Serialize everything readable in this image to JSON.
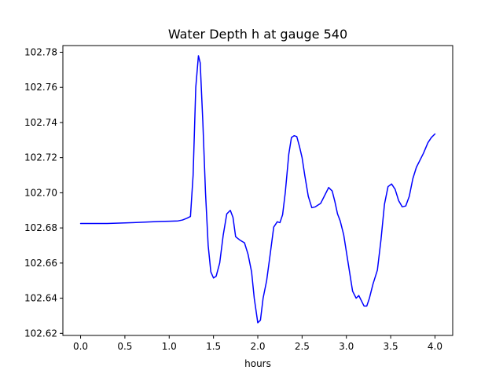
{
  "chart_data": {
    "type": "line",
    "title": "Water Depth h at gauge 540",
    "xlabel": "hours",
    "ylabel": "",
    "xlim": [
      -0.2,
      4.2
    ],
    "ylim": [
      102.6188,
      102.7838
    ],
    "xticks": [
      0.0,
      0.5,
      1.0,
      1.5,
      2.0,
      2.5,
      3.0,
      3.5,
      4.0
    ],
    "xtick_labels": [
      "0.0",
      "0.5",
      "1.0",
      "1.5",
      "2.0",
      "2.5",
      "3.0",
      "3.5",
      "4.0"
    ],
    "yticks": [
      102.62,
      102.64,
      102.66,
      102.68,
      102.7,
      102.72,
      102.74,
      102.76,
      102.78
    ],
    "ytick_labels": [
      "102.62",
      "102.64",
      "102.66",
      "102.68",
      "102.70",
      "102.72",
      "102.74",
      "102.76",
      "102.78"
    ],
    "grid": false,
    "series": [
      {
        "color": "#0000ff",
        "x": [
          0.0,
          0.3,
          0.6,
          0.9,
          1.0,
          1.1,
          1.15,
          1.2,
          1.24,
          1.27,
          1.3,
          1.33,
          1.35,
          1.38,
          1.41,
          1.44,
          1.47,
          1.5,
          1.53,
          1.57,
          1.61,
          1.65,
          1.69,
          1.72,
          1.75,
          1.8,
          1.85,
          1.89,
          1.93,
          1.96,
          2.0,
          2.03,
          2.06,
          2.1,
          2.14,
          2.18,
          2.22,
          2.25,
          2.28,
          2.31,
          2.35,
          2.38,
          2.41,
          2.44,
          2.47,
          2.5,
          2.53,
          2.57,
          2.61,
          2.65,
          2.68,
          2.71,
          2.75,
          2.8,
          2.84,
          2.87,
          2.9,
          2.93,
          2.97,
          3.02,
          3.07,
          3.11,
          3.14,
          3.17,
          3.2,
          3.23,
          3.26,
          3.3,
          3.35,
          3.39,
          3.43,
          3.47,
          3.51,
          3.55,
          3.59,
          3.63,
          3.67,
          3.71,
          3.75,
          3.79,
          3.83,
          3.87,
          3.92,
          3.96,
          4.0
        ],
        "y": [
          102.6825,
          102.6825,
          102.683,
          102.6837,
          102.6838,
          102.684,
          102.6845,
          102.6855,
          102.6865,
          102.71,
          102.76,
          102.778,
          102.774,
          102.74,
          102.7,
          102.67,
          102.655,
          102.6515,
          102.6525,
          102.66,
          102.676,
          102.688,
          102.69,
          102.686,
          102.675,
          102.673,
          102.6715,
          102.665,
          102.655,
          102.64,
          102.626,
          102.6275,
          102.64,
          102.65,
          102.665,
          102.6805,
          102.6835,
          102.683,
          102.6875,
          102.7,
          102.722,
          102.7315,
          102.7325,
          102.732,
          102.7265,
          102.72,
          102.71,
          102.698,
          102.6915,
          102.692,
          102.693,
          102.694,
          102.698,
          102.703,
          102.701,
          102.695,
          102.688,
          102.684,
          102.676,
          102.66,
          102.644,
          102.64,
          102.6415,
          102.6385,
          102.6355,
          102.6355,
          102.64,
          102.648,
          102.656,
          102.673,
          102.6935,
          102.7035,
          102.705,
          102.702,
          102.6955,
          102.692,
          102.6925,
          102.698,
          102.708,
          102.7145,
          102.7185,
          102.7225,
          102.7285,
          102.7315,
          102.7335
        ]
      }
    ]
  }
}
